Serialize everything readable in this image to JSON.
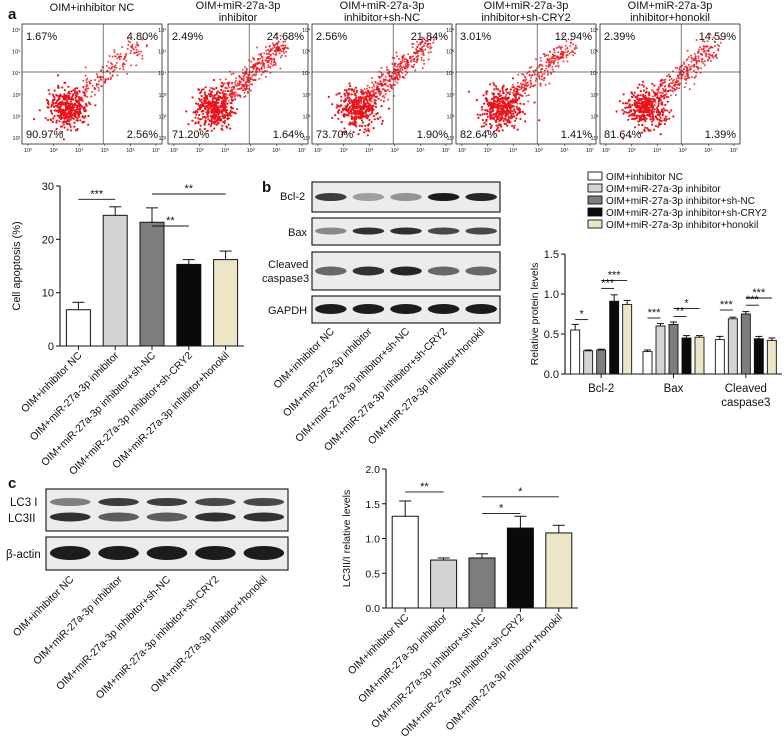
{
  "panel_labels": {
    "a": "a",
    "b": "b",
    "c": "c"
  },
  "flow": {
    "panels": [
      {
        "title": [
          "OIM+inhibitor NC"
        ],
        "q": [
          "1.67%",
          "4.80%",
          "90.97%",
          "2.56%"
        ]
      },
      {
        "title": [
          "OIM+miR-27a-3p",
          "inhibitor"
        ],
        "q": [
          "2.49%",
          "24.68%",
          "71.20%",
          "1.64%"
        ]
      },
      {
        "title": [
          "OIM+miR-27a-3p",
          "inhibitor+sh-NC"
        ],
        "q": [
          "2.56%",
          "21.84%",
          "73.70%",
          "1.90%"
        ]
      },
      {
        "title": [
          "OIM+miR-27a-3p",
          "inhibitor+sh-CRY2"
        ],
        "q": [
          "3.01%",
          "12.94%",
          "82.64%",
          "1.41%"
        ]
      },
      {
        "title": [
          "OIM+miR-27a-3p",
          "inhibitor+honokil"
        ],
        "q": [
          "2.39%",
          "14.59%",
          "81.64%",
          "1.39%"
        ]
      }
    ],
    "x_ticks": [
      "10²",
      "10³",
      "10⁴",
      "10⁵",
      "10⁶",
      "10⁷"
    ],
    "y_ticks": [
      "10¹",
      "10²",
      "10³",
      "10⁴",
      "10⁵",
      "10⁶"
    ]
  },
  "groups": [
    "OIM+inhibitor NC",
    "OIM+miR-27a-3p inhibitor",
    "OIM+miR-27a-3p inhibitor+sh-NC",
    "OIM+miR-27a-3p inhibitor+sh-CRY2",
    "OIM+miR-27a-3p inhibitor+honokil"
  ],
  "colors": [
    "#ffffff",
    "#d4d4d4",
    "#7d7d7d",
    "#0a0a0a",
    "#ece5c6"
  ],
  "blot_b": {
    "labels": [
      "Bcl-2",
      "Bax",
      "Cleaved\ncaspase3",
      "GAPDH"
    ]
  },
  "blot_c": {
    "labels": [
      "LC3 I",
      "LC3II",
      "β-actin"
    ]
  },
  "chart_data": [
    {
      "type": "bar",
      "categories": [
        "OIM+inhibitor NC",
        "OIM+miR-27a-3p inhibitor",
        "OIM+miR-27a-3p inhibitor+sh-NC",
        "OIM+miR-27a-3p inhibitor+sh-CRY2",
        "OIM+miR-27a-3p inhibitor+honokil"
      ],
      "values": [
        6.8,
        24.5,
        23.2,
        15.3,
        16.2
      ],
      "errors": [
        1.4,
        1.6,
        2.7,
        0.9,
        1.6
      ],
      "ylabel": "Cell apoptosis (%)",
      "ylim": [
        0,
        30
      ],
      "yticks": [
        0,
        10,
        20,
        30
      ],
      "sig": [
        {
          "from": 0,
          "to": 1,
          "label": "***"
        },
        {
          "from": 2,
          "to": 4,
          "label": "**"
        },
        {
          "from": 2,
          "to": 3,
          "label": "**"
        }
      ]
    },
    {
      "type": "bar",
      "categories": [
        "Bcl-2",
        "Bax",
        "Cleaved caspase3"
      ],
      "series": [
        {
          "name": "OIM+inhibitor NC",
          "values": [
            0.55,
            0.28,
            0.43
          ],
          "errors": [
            0.07,
            0.02,
            0.04
          ]
        },
        {
          "name": "OIM+miR-27a-3p inhibitor",
          "values": [
            0.29,
            0.6,
            0.69
          ],
          "errors": [
            0.01,
            0.03,
            0.02
          ]
        },
        {
          "name": "OIM+miR-27a-3p inhibitor+sh-NC",
          "values": [
            0.3,
            0.62,
            0.75
          ],
          "errors": [
            0.01,
            0.03,
            0.03
          ]
        },
        {
          "name": "OIM+miR-27a-3p inhibitor+sh-CRY2",
          "values": [
            0.91,
            0.45,
            0.44
          ],
          "errors": [
            0.08,
            0.03,
            0.03
          ]
        },
        {
          "name": "OIM+miR-27a-3p inhibitor+honokil",
          "values": [
            0.87,
            0.46,
            0.42
          ],
          "errors": [
            0.05,
            0.02,
            0.03
          ]
        }
      ],
      "ylabel": "Relative protein levels",
      "ylim": [
        0,
        1.5
      ],
      "yticks": [
        "0.0",
        "0.5",
        "1.0",
        "1.5"
      ],
      "legend": "top",
      "sig": [
        {
          "cat": 0,
          "from": 0,
          "to": 1,
          "label": "*"
        },
        {
          "cat": 0,
          "from": 2,
          "to": 3,
          "label": "***"
        },
        {
          "cat": 0,
          "from": 2,
          "to": 4,
          "label": "***"
        },
        {
          "cat": 1,
          "from": 0,
          "to": 1,
          "label": "***"
        },
        {
          "cat": 1,
          "from": 2,
          "to": 3,
          "label": "**"
        },
        {
          "cat": 1,
          "from": 2,
          "to": 4,
          "label": "*"
        },
        {
          "cat": 2,
          "from": 0,
          "to": 1,
          "label": "***"
        },
        {
          "cat": 2,
          "from": 2,
          "to": 3,
          "label": "***"
        },
        {
          "cat": 2,
          "from": 2,
          "to": 4,
          "label": "***"
        }
      ]
    },
    {
      "type": "bar",
      "categories": [
        "OIM+inhibitor NC",
        "OIM+miR-27a-3p inhibitor",
        "OIM+miR-27a-3p inhibitor+sh-NC",
        "OIM+miR-27a-3p inhibitor+sh-CRY2",
        "OIM+miR-27a-3p inhibitor+honokil"
      ],
      "values": [
        1.32,
        0.69,
        0.72,
        1.15,
        1.08
      ],
      "errors": [
        0.22,
        0.03,
        0.06,
        0.17,
        0.11
      ],
      "ylabel": "LC3II/I relative levels",
      "ylim": [
        0,
        2.0
      ],
      "yticks": [
        "0.0",
        "0.5",
        "1.0",
        "1.5",
        "2.0"
      ],
      "sig": [
        {
          "from": 0,
          "to": 1,
          "label": "**"
        },
        {
          "from": 2,
          "to": 4,
          "label": "*"
        },
        {
          "from": 2,
          "to": 3,
          "label": "*"
        }
      ]
    }
  ]
}
